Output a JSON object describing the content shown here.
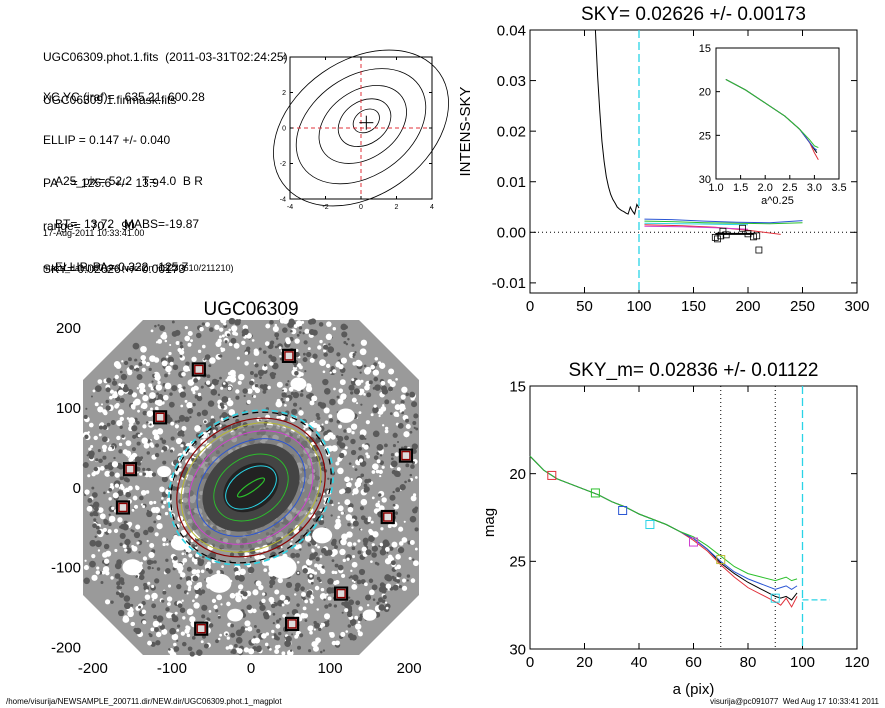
{
  "info": {
    "lines_a": [
      "UGC06309.phot.1.fits  (2011-03-31T02:24:25)",
      "UGC06309.1.finmask.fits"
    ],
    "lines_b": [
      "XC,YC (iraf)=   635.21, 600.28",
      "ELLIP = 0.147 +/- 0.040",
      "PA    = 125.6 +/-  13.9",
      "range=   70.-   90.",
      "SKY= 0.02626 +/- 0.00173"
    ],
    "lines_c": [
      "A25_pix= 52.2   T= 4.0  B R",
      "BT=  13.72   MABS=-19.87",
      "ELLIP, PA= 0.322   125.7"
    ],
    "lines_d": [
      "17-Aug-2011 10:33:41.00",
      "make_datalist0.pro (version HS230610/211210)"
    ]
  },
  "footer": {
    "left": "/home/visurija/NEWSAMPLE_200711.dir/NEW.dir/UGC06309.phot.1_magplot",
    "right": "visurija@pc091077  Wed Aug 17 10:33:41 2011"
  },
  "colors": {
    "cyan": "#2ad4e6",
    "red": "#e0303a",
    "green": "#2cc02c",
    "blue": "#2a55d4",
    "magenta": "#d040d0",
    "dark_red": "#8b0000",
    "olive": "#b8b830"
  },
  "chart_data": [
    {
      "type": "line",
      "id": "centroid",
      "title": "",
      "xlim": [
        -4,
        4
      ],
      "ylim": [
        -4,
        4
      ],
      "xticks": [
        "-4",
        "-2",
        "0",
        "2",
        "4"
      ],
      "yticks": [
        "-4",
        "-2",
        "0",
        "2",
        "4"
      ],
      "contours": [
        {
          "cx": 0.3,
          "cy": 0.4,
          "a": 0.8,
          "b": 0.6,
          "ang": 35
        },
        {
          "cx": 0.2,
          "cy": 0.3,
          "a": 1.6,
          "b": 1.2,
          "ang": 35
        },
        {
          "cx": 0.1,
          "cy": 0.2,
          "a": 2.7,
          "b": 1.9,
          "ang": 35
        },
        {
          "cx": 0.0,
          "cy": 0.1,
          "a": 4.0,
          "b": 2.8,
          "ang": 35
        },
        {
          "cx": 0.0,
          "cy": 0.0,
          "a": 5.4,
          "b": 3.8,
          "ang": 35
        }
      ],
      "center_mark": [
        0.3,
        0.3
      ]
    },
    {
      "type": "line",
      "id": "sky",
      "title": "SKY= 0.02626 +/- 0.00173",
      "xlabel": "",
      "ylabel": "INTENS-SKY",
      "xlim": [
        0,
        300
      ],
      "ylim": [
        -0.012,
        0.04
      ],
      "xticks": [
        "0",
        "50",
        "100",
        "150",
        "200",
        "250",
        "300"
      ],
      "yticks": [
        "-0.01",
        "0.00",
        "0.01",
        "0.02",
        "0.03",
        "0.04"
      ],
      "series": [
        {
          "color": "black",
          "x": [
            60,
            62,
            64,
            66,
            68,
            70,
            72,
            74,
            76,
            78,
            80,
            82,
            84,
            86,
            88,
            90,
            92,
            94,
            96,
            98,
            100
          ],
          "y": [
            0.04,
            0.031,
            0.024,
            0.018,
            0.014,
            0.011,
            0.009,
            0.0075,
            0.0065,
            0.0058,
            0.005,
            0.0046,
            0.0043,
            0.0041,
            0.0038,
            0.0036,
            0.005,
            0.0042,
            0.0036,
            0.0055,
            0.0048
          ]
        }
      ],
      "flat_segments": [
        {
          "color": "green",
          "x": [
            105,
            130,
            160,
            190,
            220,
            250
          ],
          "y": [
            0.0022,
            0.0021,
            0.0019,
            0.0018,
            0.0017,
            0.0019
          ]
        },
        {
          "color": "blue",
          "x": [
            105,
            130,
            160,
            190,
            220,
            250
          ],
          "y": [
            0.0026,
            0.0025,
            0.0022,
            0.002,
            0.0019,
            0.0023
          ]
        },
        {
          "color": "red",
          "x": [
            105,
            140,
            170,
            200,
            230
          ],
          "y": [
            0.0015,
            0.0013,
            0.001,
            0.0004,
            -0.0004
          ]
        },
        {
          "color": "magenta",
          "x": [
            105,
            140,
            170,
            200
          ],
          "y": [
            0.0012,
            0.0011,
            0.0009,
            0.0006
          ]
        },
        {
          "color": "cyan",
          "x": [
            105,
            140,
            170,
            200
          ],
          "y": [
            0.0018,
            0.0017,
            0.0016,
            0.0015
          ]
        },
        {
          "color": "black",
          "x": [
            170,
            205
          ],
          "y": [
            -0.0003,
            -0.0003
          ]
        }
      ],
      "squares": [
        [
          170,
          -0.001
        ],
        [
          172,
          -0.0013
        ],
        [
          175,
          -0.0007
        ],
        [
          177,
          0.0002
        ],
        [
          180,
          -0.0005
        ],
        [
          195,
          0.0008
        ],
        [
          200,
          -0.0003
        ],
        [
          205,
          -0.0009
        ],
        [
          208,
          -0.0007
        ],
        [
          210,
          -0.0035
        ]
      ],
      "vline": 100,
      "inset": {
        "xlabel": "a^0.25",
        "xlim": [
          1.0,
          3.5
        ],
        "ylim": [
          15,
          30
        ],
        "xticks": [
          "1.0",
          "1.5",
          "2.0",
          "2.5",
          "3.0",
          "3.5"
        ],
        "yticks": [
          "15",
          "20",
          "25",
          "30"
        ],
        "series": [
          {
            "color": "black",
            "x": [
              1.2,
              1.6,
              2.0,
              2.4,
              2.7,
              2.9,
              3.0,
              3.05
            ],
            "y": [
              18.6,
              19.8,
              21.3,
              22.8,
              24.3,
              25.8,
              26.6,
              27.0
            ]
          },
          {
            "color": "red",
            "x": [
              1.2,
              1.6,
              2.0,
              2.4,
              2.7,
              2.9,
              3.0,
              3.08
            ],
            "y": [
              18.6,
              19.8,
              21.3,
              22.8,
              24.3,
              25.8,
              27.0,
              27.8
            ]
          },
          {
            "color": "blue",
            "x": [
              1.2,
              1.6,
              2.0,
              2.4,
              2.7,
              2.9,
              3.0,
              3.05
            ],
            "y": [
              18.6,
              19.8,
              21.3,
              22.8,
              24.3,
              25.8,
              26.5,
              26.7
            ]
          },
          {
            "color": "green",
            "x": [
              1.2,
              1.6,
              2.0,
              2.4,
              2.7,
              2.9,
              3.0,
              3.08
            ],
            "y": [
              18.6,
              19.8,
              21.3,
              22.8,
              24.3,
              25.5,
              26.2,
              26.4
            ]
          }
        ]
      }
    },
    {
      "type": "scatter",
      "id": "image",
      "title": "UGC06309",
      "xlim": [
        -210,
        210
      ],
      "ylim": [
        -210,
        210
      ],
      "xticks": [
        "-200",
        "-100",
        "0",
        "100",
        "200"
      ],
      "yticks": [
        "-200",
        "-100",
        "0",
        "100",
        "200"
      ],
      "masked_stars": [
        [
          -66,
          148
        ],
        [
          48,
          165
        ],
        [
          -115,
          88
        ],
        [
          -153,
          23
        ],
        [
          -162,
          -25
        ],
        [
          196,
          40
        ],
        [
          173,
          -37
        ],
        [
          114,
          -133
        ],
        [
          -63,
          -177
        ],
        [
          52,
          -171
        ]
      ]
    },
    {
      "type": "line",
      "id": "mag",
      "title": "SKY_m=  0.02836 +/- 0.01122",
      "xlabel": "a (pix)",
      "ylabel": "mag",
      "xlim": [
        0,
        120
      ],
      "ylim": [
        15,
        30
      ],
      "xticks": [
        "0",
        "20",
        "40",
        "60",
        "80",
        "100",
        "120"
      ],
      "yticks": [
        "15",
        "20",
        "25",
        "30"
      ],
      "series": [
        {
          "color": "black",
          "x": [
            0,
            5,
            10,
            15,
            20,
            25,
            30,
            35,
            40,
            45,
            50,
            55,
            60,
            65,
            70,
            75,
            80,
            85,
            90,
            92,
            94,
            96,
            98
          ],
          "y": [
            19.0,
            19.8,
            20.3,
            20.6,
            20.9,
            21.2,
            21.6,
            21.9,
            22.3,
            22.6,
            22.9,
            23.3,
            23.7,
            24.3,
            25.1,
            25.7,
            26.2,
            26.6,
            27.0,
            27.1,
            27.0,
            27.2,
            26.8
          ]
        },
        {
          "color": "red",
          "x": [
            0,
            5,
            10,
            15,
            20,
            25,
            30,
            35,
            40,
            45,
            50,
            55,
            60,
            65,
            70,
            75,
            80,
            85,
            90,
            92,
            94,
            96,
            98
          ],
          "y": [
            19.0,
            19.8,
            20.3,
            20.6,
            20.9,
            21.2,
            21.6,
            21.9,
            22.3,
            22.6,
            22.9,
            23.3,
            23.8,
            24.4,
            25.2,
            25.9,
            26.5,
            26.9,
            27.3,
            27.5,
            27.1,
            27.6,
            27.0
          ]
        },
        {
          "color": "blue",
          "x": [
            0,
            5,
            10,
            15,
            20,
            25,
            30,
            35,
            40,
            45,
            50,
            55,
            60,
            65,
            70,
            75,
            80,
            85,
            90,
            92,
            94,
            96,
            98
          ],
          "y": [
            19.0,
            19.8,
            20.3,
            20.6,
            20.9,
            21.2,
            21.6,
            21.9,
            22.3,
            22.6,
            22.9,
            23.3,
            23.7,
            24.3,
            25.0,
            25.6,
            26.0,
            26.3,
            26.6,
            26.5,
            26.4,
            26.6,
            26.4
          ]
        },
        {
          "color": "green",
          "x": [
            0,
            5,
            10,
            15,
            20,
            25,
            30,
            35,
            40,
            45,
            50,
            55,
            60,
            65,
            70,
            75,
            80,
            85,
            90,
            92,
            94,
            96,
            98
          ],
          "y": [
            19.0,
            19.8,
            20.3,
            20.6,
            20.9,
            21.2,
            21.6,
            21.9,
            22.3,
            22.6,
            22.9,
            23.3,
            23.6,
            24.1,
            24.7,
            25.3,
            25.7,
            25.9,
            26.1,
            26.0,
            25.9,
            26.1,
            26.0
          ]
        }
      ],
      "squares": [
        {
          "color": "red",
          "x": 8,
          "y": 20.1
        },
        {
          "color": "green",
          "x": 24,
          "y": 21.1
        },
        {
          "color": "blue",
          "x": 34,
          "y": 22.1
        },
        {
          "color": "cyan",
          "x": 44,
          "y": 22.9
        },
        {
          "color": "magenta",
          "x": 60,
          "y": 23.9
        },
        {
          "color": "olive",
          "x": 70,
          "y": 24.9
        },
        {
          "color": "cyan",
          "x": 90,
          "y": 27.1
        }
      ],
      "dotted_vlines": [
        70,
        90
      ],
      "dashed_vline": 100,
      "sky_segment": {
        "x": [
          100,
          110
        ],
        "y": 27.2
      }
    }
  ]
}
